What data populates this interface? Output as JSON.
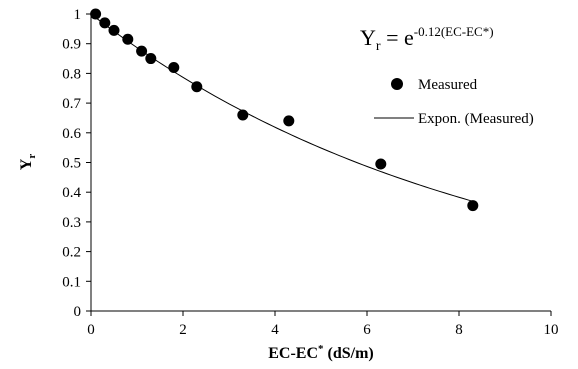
{
  "chart_data": {
    "type": "scatter",
    "xlabel_main": "EC-EC",
    "xlabel_sup": "*",
    "xlabel_unit": " (dS/m)",
    "ylabel_main": "Y",
    "ylabel_sub": "r",
    "xlim": [
      0,
      10
    ],
    "ylim": [
      0,
      1
    ],
    "x_ticks": [
      "0",
      "2",
      "4",
      "6",
      "8",
      "10"
    ],
    "y_ticks": [
      "0",
      "0.1",
      "0.2",
      "0.3",
      "0.4",
      "0.5",
      "0.6",
      "0.7",
      "0.8",
      "0.9",
      "1"
    ],
    "grid": false,
    "legend_position": "top-right",
    "series": [
      {
        "name": "Measured",
        "marker": "filled-circle",
        "color": "#000000",
        "x": [
          0.1,
          0.3,
          0.5,
          0.8,
          1.1,
          1.3,
          1.8,
          2.3,
          3.3,
          4.3,
          6.3,
          8.3
        ],
        "y": [
          1.0,
          0.97,
          0.945,
          0.915,
          0.875,
          0.85,
          0.82,
          0.755,
          0.66,
          0.64,
          0.495,
          0.355
        ]
      },
      {
        "name": "Expon. (Measured)",
        "type": "line",
        "color": "#000000",
        "equation": "y = exp(-0.12 x)",
        "coefficient": -0.12,
        "x_range": [
          0,
          8.3
        ]
      }
    ],
    "annotation": {
      "eq_y": "Y",
      "eq_sub": "r",
      "eq_eq": " = e",
      "eq_sup": "-0.12(EC-EC*)"
    }
  }
}
